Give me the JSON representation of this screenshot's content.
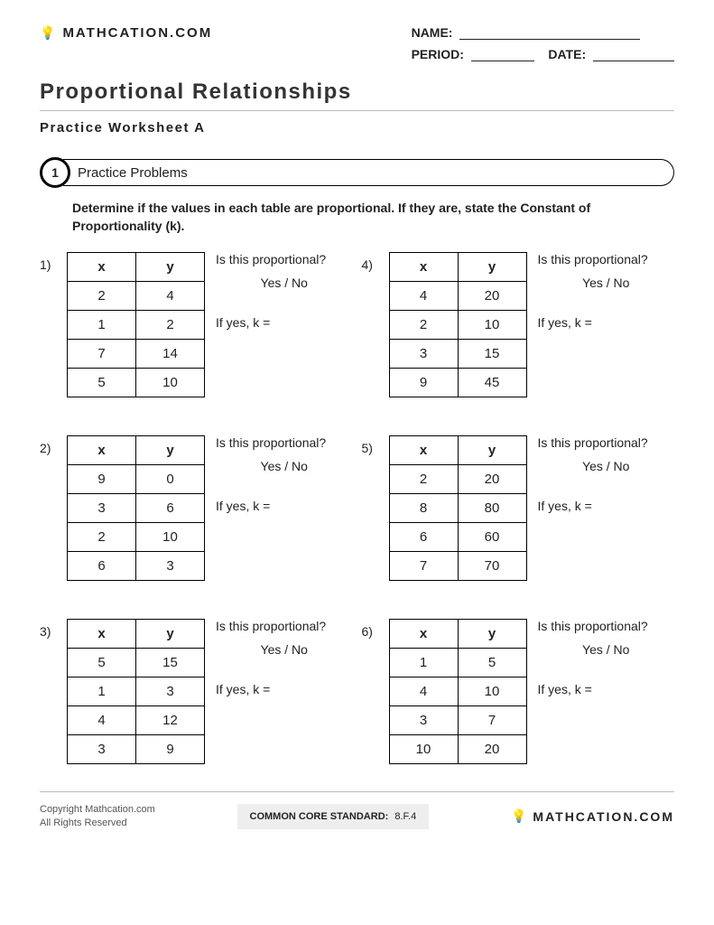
{
  "brand": "MATHCATION.COM",
  "header_fields": {
    "name_label": "NAME:",
    "period_label": "PERIOD:",
    "date_label": "DATE:"
  },
  "title": "Proportional Relationships",
  "subtitle": "Practice Worksheet A",
  "section": {
    "number": "1",
    "label": "Practice Problems"
  },
  "instructions": "Determine if the values in each table are proportional. If they are, state the Constant of Proportionality (k).",
  "prompt_q1": "Is this proportional?",
  "prompt_yn": "Yes / No",
  "prompt_q2": "If yes, k =",
  "col_x": "x",
  "col_y": "y",
  "problems": [
    {
      "n": "1)",
      "rows": [
        [
          "2",
          "4"
        ],
        [
          "1",
          "2"
        ],
        [
          "7",
          "14"
        ],
        [
          "5",
          "10"
        ]
      ]
    },
    {
      "n": "2)",
      "rows": [
        [
          "9",
          "0"
        ],
        [
          "3",
          "6"
        ],
        [
          "2",
          "10"
        ],
        [
          "6",
          "3"
        ]
      ]
    },
    {
      "n": "3)",
      "rows": [
        [
          "5",
          "15"
        ],
        [
          "1",
          "3"
        ],
        [
          "4",
          "12"
        ],
        [
          "3",
          "9"
        ]
      ]
    },
    {
      "n": "4)",
      "rows": [
        [
          "4",
          "20"
        ],
        [
          "2",
          "10"
        ],
        [
          "3",
          "15"
        ],
        [
          "9",
          "45"
        ]
      ]
    },
    {
      "n": "5)",
      "rows": [
        [
          "2",
          "20"
        ],
        [
          "8",
          "80"
        ],
        [
          "6",
          "60"
        ],
        [
          "7",
          "70"
        ]
      ]
    },
    {
      "n": "6)",
      "rows": [
        [
          "1",
          "5"
        ],
        [
          "4",
          "10"
        ],
        [
          "3",
          "7"
        ],
        [
          "10",
          "20"
        ]
      ]
    }
  ],
  "footer": {
    "copyright_l1": "Copyright Mathcation.com",
    "copyright_l2": "All Rights Reserved",
    "ccs_label": "COMMON CORE STANDARD:",
    "ccs_value": "8.F.4",
    "brand": "MATHCATION.COM"
  }
}
